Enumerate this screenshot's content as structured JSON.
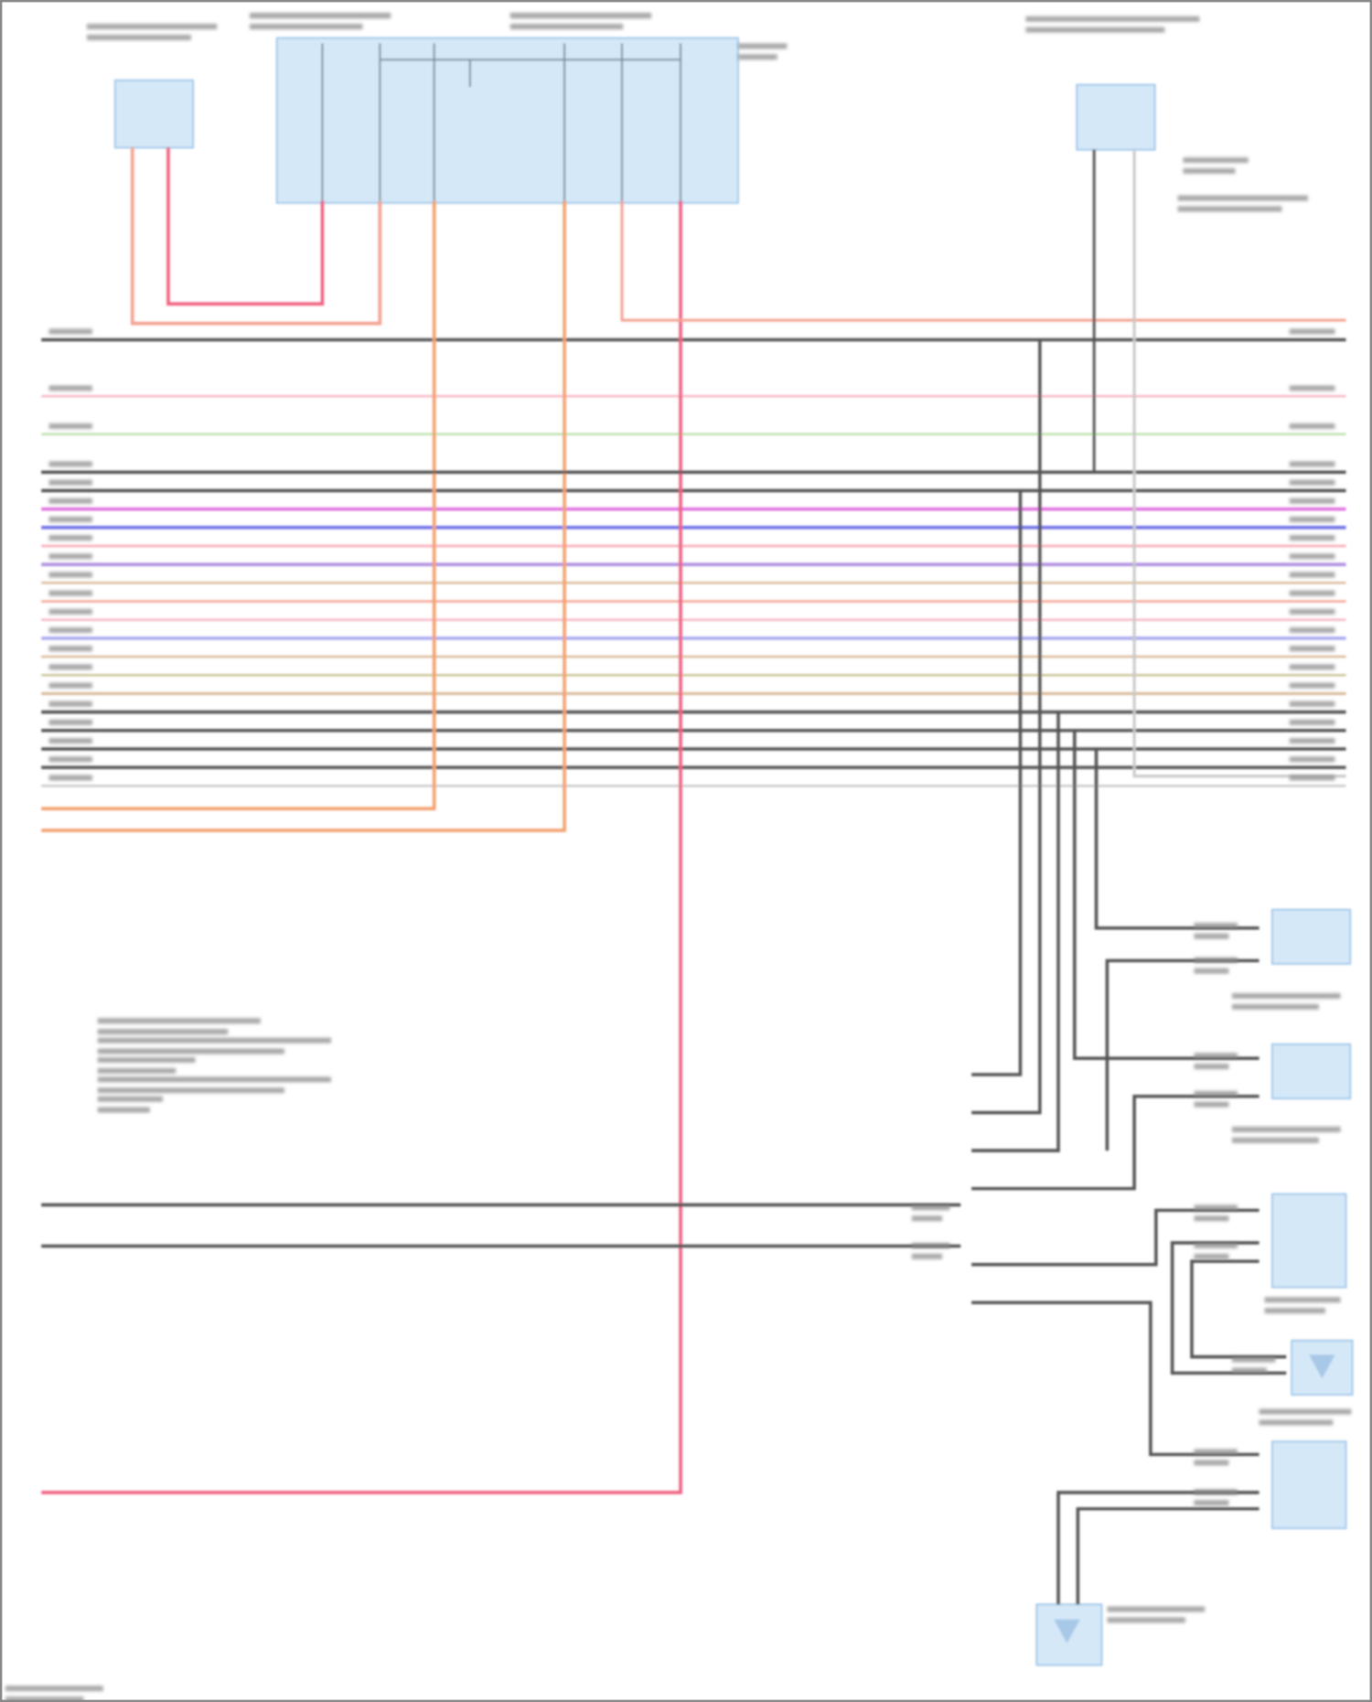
{
  "diagram": {
    "type": "wiring-schematic",
    "wire_colors": {
      "black": "#555555",
      "orange": "#f4a070",
      "red": "#f06080",
      "salmon": "#f4a090",
      "pink": "#f8b4c0",
      "light_green": "#b8e0a8",
      "magenta": "#e070e0",
      "blue": "#7070e8",
      "purple": "#b090e0",
      "tan": "#d8b898",
      "olive": "#c8c090",
      "lavender": "#a8a8f0",
      "light_gray": "#c8c8c8"
    },
    "component_fill": "#d4e8f8",
    "component_stroke": "#9cc4e8"
  }
}
